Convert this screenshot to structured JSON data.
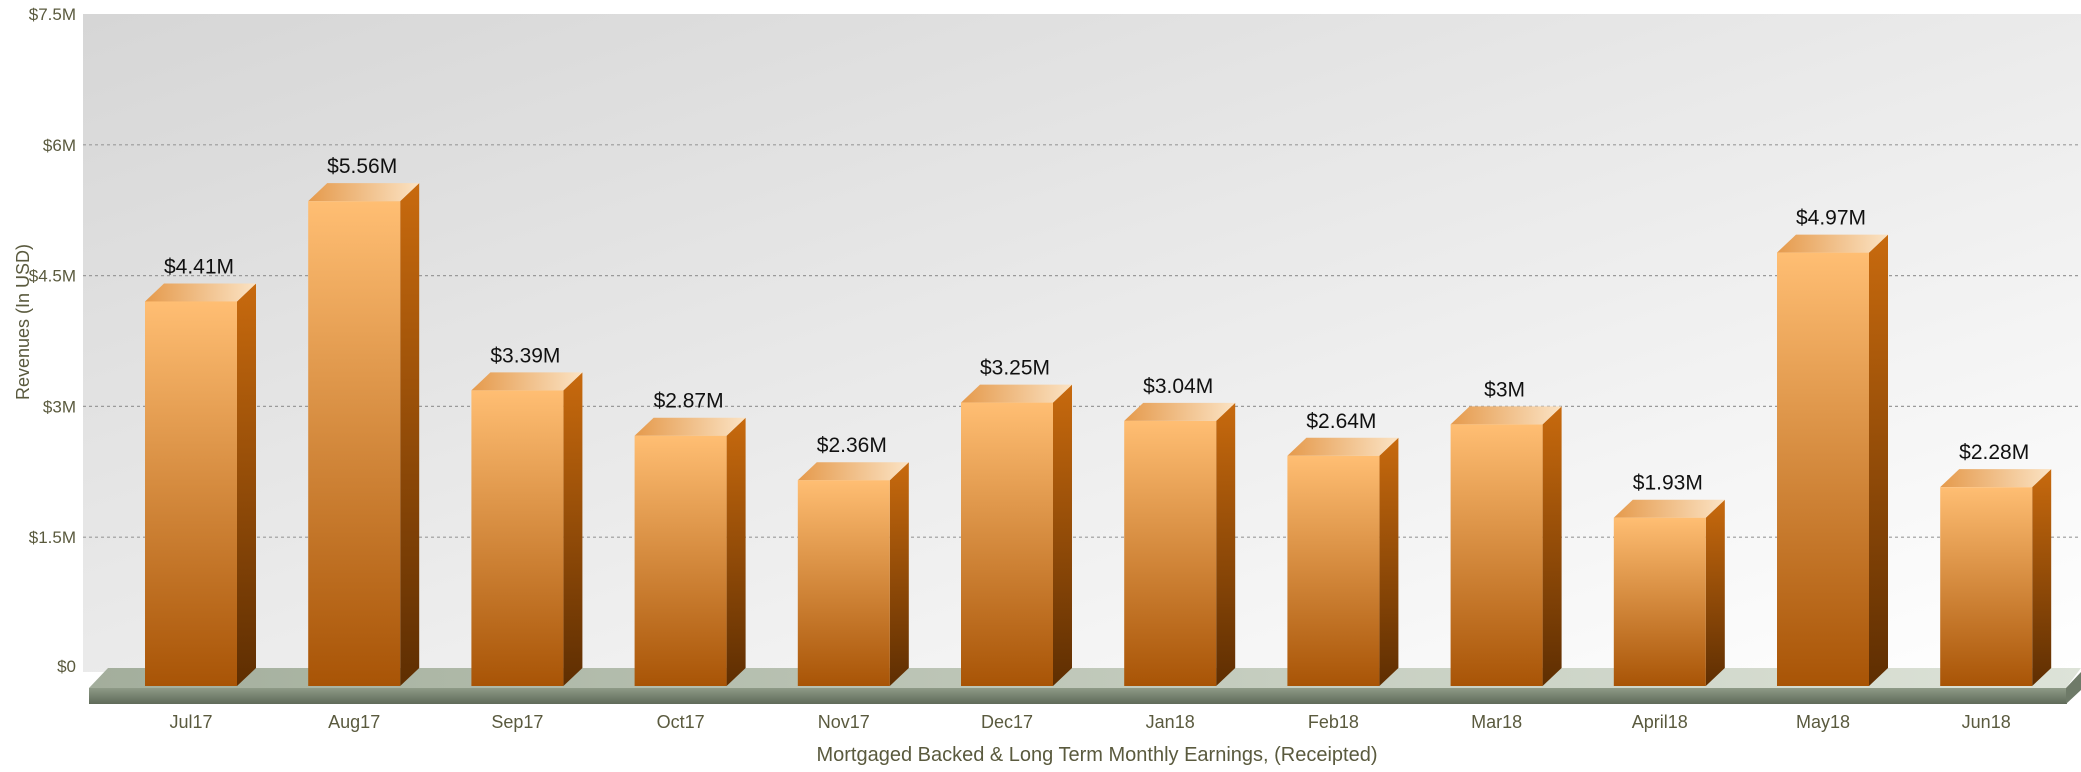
{
  "chart_data": {
    "type": "bar",
    "categories": [
      "Jul17",
      "Aug17",
      "Sep17",
      "Oct17",
      "Nov17",
      "Dec17",
      "Jan18",
      "Feb18",
      "Mar18",
      "April18",
      "May18",
      "Jun18"
    ],
    "values": [
      4.41,
      5.56,
      3.39,
      2.87,
      2.36,
      3.25,
      3.04,
      2.64,
      3.0,
      1.93,
      4.97,
      2.28
    ],
    "value_labels": [
      "$4.41M",
      "$5.56M",
      "$3.39M",
      "$2.87M",
      "$2.36M",
      "$3.25M",
      "$3.04M",
      "$2.64M",
      "$3M",
      "$1.93M",
      "$4.97M",
      "$2.28M"
    ],
    "title": "",
    "xlabel": "Mortgaged Backed & Long Term Monthly Earnings, (Receipted)",
    "ylabel": "Revenues (In USD)",
    "ylim": [
      0,
      7.5
    ],
    "yticks": [
      0,
      1.5,
      3,
      4.5,
      6,
      7.5
    ],
    "ytick_labels": [
      "$0",
      "$1.5M",
      "$3M",
      "$4.5M",
      "$6M",
      "$7.5M"
    ],
    "grid": true,
    "style": "3d-column",
    "colors": {
      "bar_light": "#FFBE73",
      "bar_dark": "#A85406",
      "bar_side": "#8A4504",
      "bar_top": "#F6C68F",
      "floor": "#AEB8A6",
      "floor_dark": "#7E8A78",
      "text": "#5A5A3E",
      "grid": "#9A9A9A"
    }
  }
}
